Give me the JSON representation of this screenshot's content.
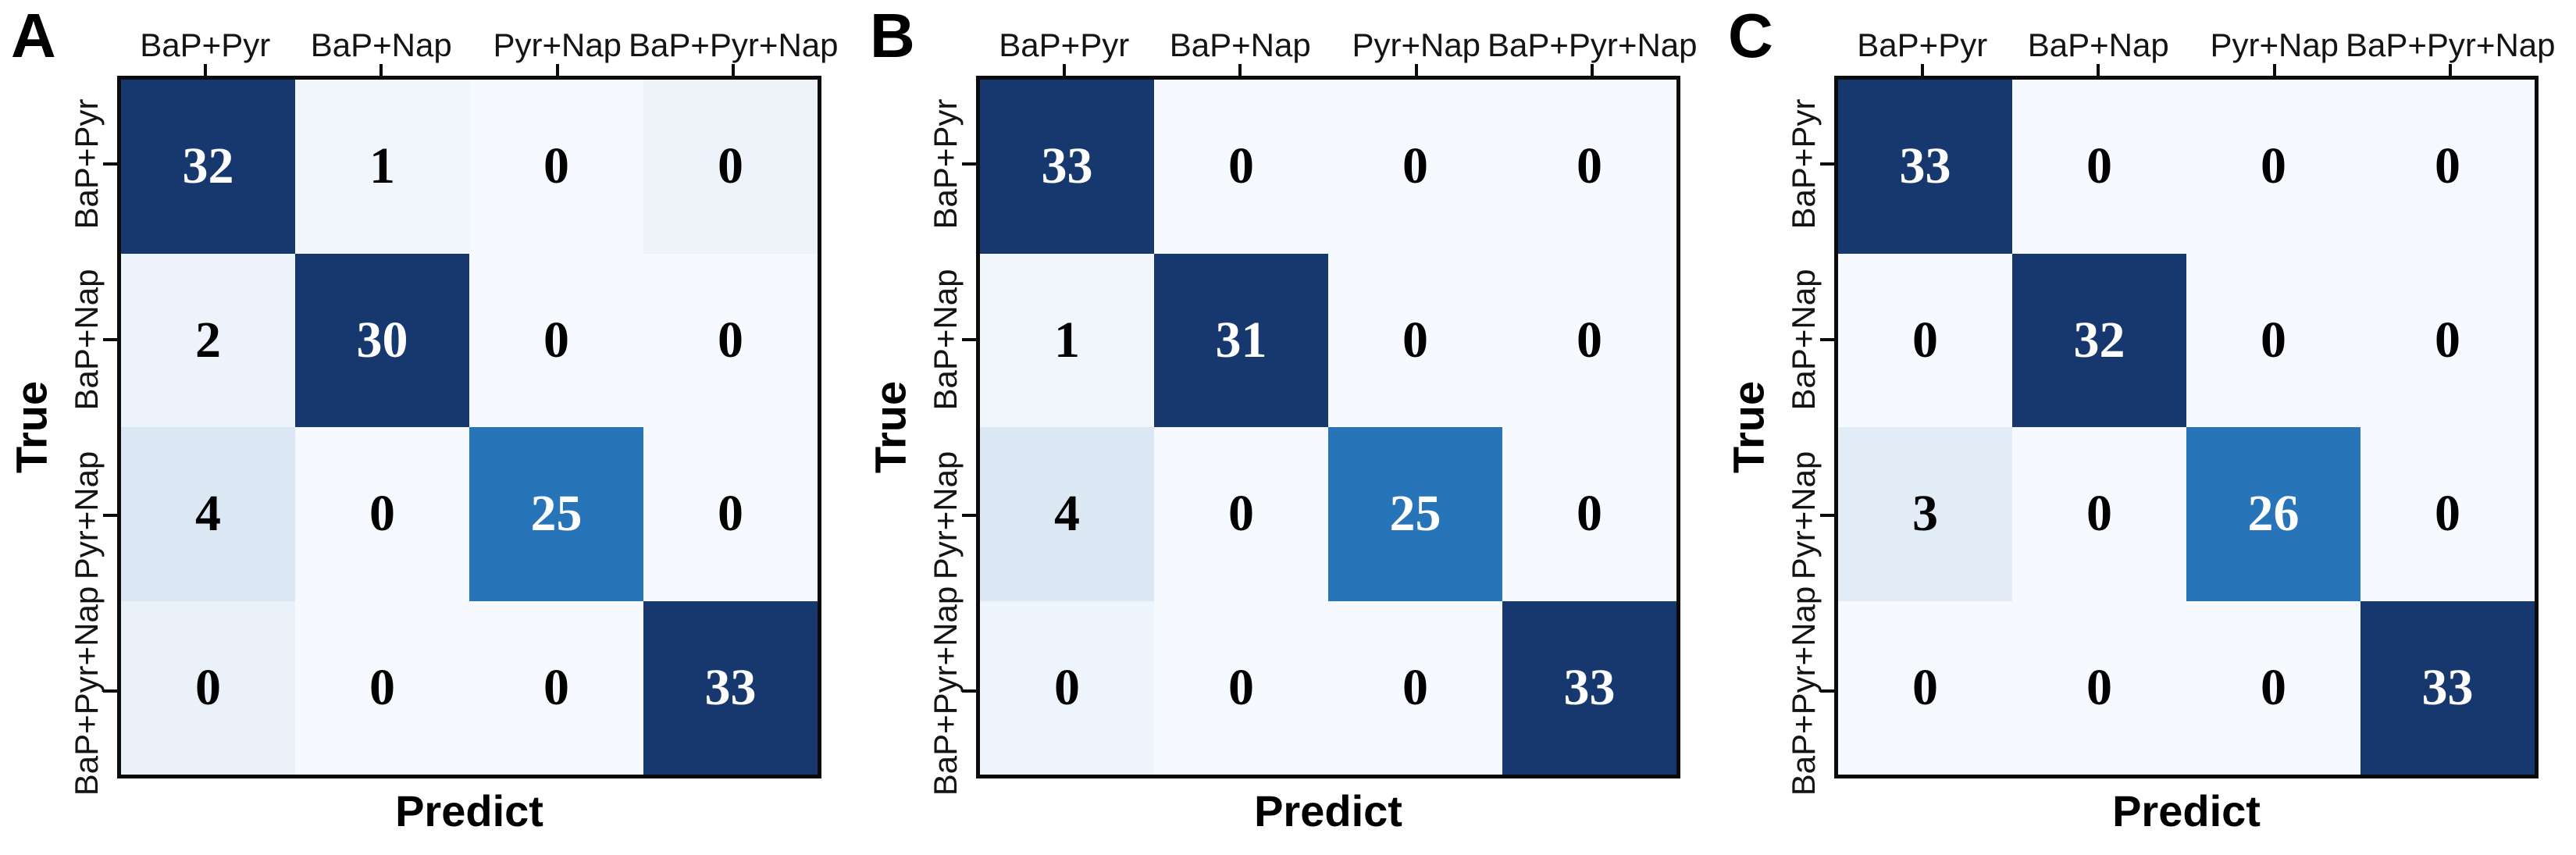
{
  "figure": {
    "description": "Three confusion matrices (panels A, B, C) comparing true vs predicted PAH mixture classes",
    "accent_dark_blue": "#17386e",
    "accent_mid_blue": "#2874b9",
    "background": "#ffffff"
  },
  "chart_data": [
    {
      "type": "heatmap",
      "panel": "A",
      "xlabel": "Predict",
      "ylabel": "True",
      "x_categories": [
        "BaP+Pyr",
        "BaP+Nap",
        "Pyr+Nap",
        "BaP+Pyr+Nap"
      ],
      "y_categories": [
        "BaP+Pyr",
        "BaP+Nap",
        "Pyr+Nap",
        "BaP+Pyr+Nap"
      ],
      "matrix": [
        [
          32,
          1,
          0,
          0
        ],
        [
          2,
          30,
          0,
          0
        ],
        [
          4,
          0,
          25,
          0
        ],
        [
          0,
          0,
          0,
          33
        ]
      ],
      "colormap": "Blues",
      "grid": false,
      "legend": "none",
      "cell_bg": [
        [
          "#17386e",
          "#f1f6fb",
          "#f6f9fd",
          "#eef3fa"
        ],
        [
          "#edf3fa",
          "#17386e",
          "#f6f9fd",
          "#f6f9fd"
        ],
        [
          "#dbe7f3",
          "#f6f9fd",
          "#2874b9",
          "#f6f9fd"
        ],
        [
          "#eaf1f9",
          "#f6f9fd",
          "#f6f9fd",
          "#17386e"
        ]
      ],
      "cell_fg": [
        [
          "#ffffff",
          "#000000",
          "#000000",
          "#000000"
        ],
        [
          "#000000",
          "#ffffff",
          "#000000",
          "#000000"
        ],
        [
          "#000000",
          "#000000",
          "#ffffff",
          "#000000"
        ],
        [
          "#000000",
          "#000000",
          "#000000",
          "#ffffff"
        ]
      ]
    },
    {
      "type": "heatmap",
      "panel": "B",
      "xlabel": "Predict",
      "ylabel": "True",
      "x_categories": [
        "BaP+Pyr",
        "BaP+Nap",
        "Pyr+Nap",
        "BaP+Pyr+Nap"
      ],
      "y_categories": [
        "BaP+Pyr",
        "BaP+Nap",
        "Pyr+Nap",
        "BaP+Pyr+Nap"
      ],
      "matrix": [
        [
          33,
          0,
          0,
          0
        ],
        [
          1,
          31,
          0,
          0
        ],
        [
          4,
          0,
          25,
          0
        ],
        [
          0,
          0,
          0,
          33
        ]
      ],
      "colormap": "Blues",
      "grid": false,
      "legend": "none",
      "cell_bg": [
        [
          "#17386e",
          "#f6f9fd",
          "#f6f9fd",
          "#f6f9fd"
        ],
        [
          "#f1f6fb",
          "#17386e",
          "#f6f9fd",
          "#f6f9fd"
        ],
        [
          "#dbe7f3",
          "#f6f9fd",
          "#2874b9",
          "#f6f9fd"
        ],
        [
          "#eef4fb",
          "#f6f9fd",
          "#f6f9fd",
          "#17386e"
        ]
      ],
      "cell_fg": [
        [
          "#ffffff",
          "#000000",
          "#000000",
          "#000000"
        ],
        [
          "#000000",
          "#ffffff",
          "#000000",
          "#000000"
        ],
        [
          "#000000",
          "#000000",
          "#ffffff",
          "#000000"
        ],
        [
          "#000000",
          "#000000",
          "#000000",
          "#ffffff"
        ]
      ]
    },
    {
      "type": "heatmap",
      "panel": "C",
      "xlabel": "Predict",
      "ylabel": "True",
      "x_categories": [
        "BaP+Pyr",
        "BaP+Nap",
        "Pyr+Nap",
        "BaP+Pyr+Nap"
      ],
      "y_categories": [
        "BaP+Pyr",
        "BaP+Nap",
        "Pyr+Nap",
        "BaP+Pyr+Nap"
      ],
      "matrix": [
        [
          33,
          0,
          0,
          0
        ],
        [
          0,
          32,
          0,
          0
        ],
        [
          3,
          0,
          26,
          0
        ],
        [
          0,
          0,
          0,
          33
        ]
      ],
      "colormap": "Blues",
      "grid": false,
      "legend": "none",
      "cell_bg": [
        [
          "#17386e",
          "#f6f9fd",
          "#f6f9fd",
          "#f6f9fd"
        ],
        [
          "#f6f9fd",
          "#17386e",
          "#f6f9fd",
          "#f6f9fd"
        ],
        [
          "#e2ecf6",
          "#f6f9fd",
          "#2874b9",
          "#f6f9fd"
        ],
        [
          "#f6f9fd",
          "#f6f9fd",
          "#f6f9fd",
          "#17386e"
        ]
      ],
      "cell_fg": [
        [
          "#ffffff",
          "#000000",
          "#000000",
          "#000000"
        ],
        [
          "#000000",
          "#ffffff",
          "#000000",
          "#000000"
        ],
        [
          "#000000",
          "#000000",
          "#ffffff",
          "#000000"
        ],
        [
          "#000000",
          "#000000",
          "#000000",
          "#ffffff"
        ]
      ]
    }
  ]
}
